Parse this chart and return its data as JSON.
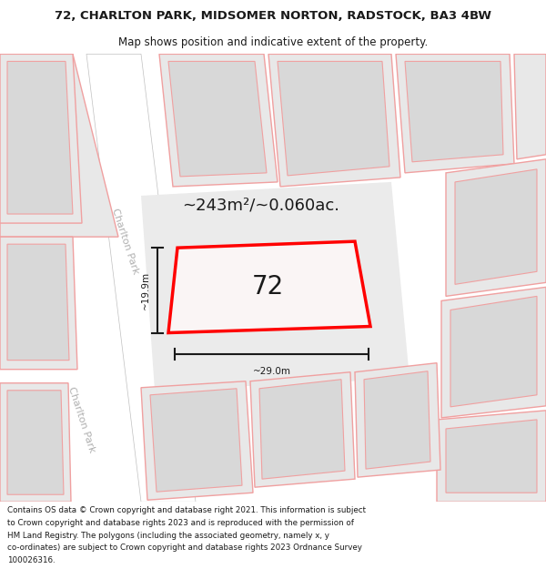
{
  "title_line1": "72, CHARLTON PARK, MIDSOMER NORTON, RADSTOCK, BA3 4BW",
  "title_line2": "Map shows position and indicative extent of the property.",
  "footer_lines": [
    "Contains OS data © Crown copyright and database right 2021. This information is subject",
    "to Crown copyright and database rights 2023 and is reproduced with the permission of",
    "HM Land Registry. The polygons (including the associated geometry, namely x, y",
    "co-ordinates) are subject to Crown copyright and database rights 2023 Ordnance Survey",
    "100026316."
  ],
  "area_text": "~243m²/~0.060ac.",
  "property_number": "72",
  "dim_width": "~29.0m",
  "dim_height": "~19.9m",
  "road_label": "Charlton Park",
  "bg_color": "#f2f2f2",
  "road_fill": "#ffffff",
  "parcel_fill": "#e8e8e8",
  "parcel_edge": "#f0a0a0",
  "inner_fill": "#d8d8d8",
  "prop_fill": "#faf5f5",
  "red": "#ff0000",
  "dark": "#1a1a1a",
  "gray_road": "#c0c0c0",
  "gray_text": "#b0b0b0",
  "white": "#ffffff"
}
